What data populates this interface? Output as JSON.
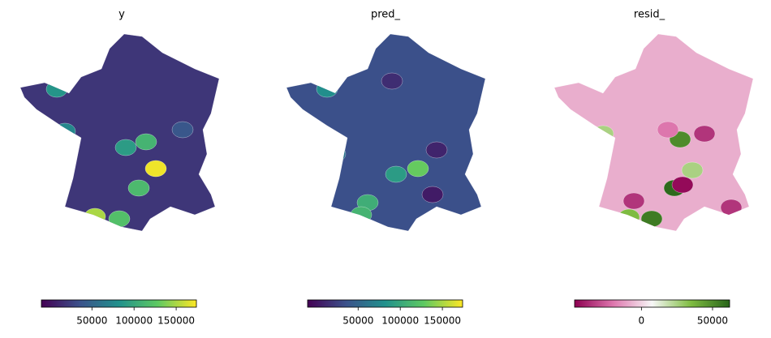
{
  "chart_data": [
    {
      "type": "choropleth",
      "title": "y",
      "colormap": "viridis",
      "clim": [
        -10000,
        174000
      ],
      "cticks": [
        50000,
        100000,
        150000
      ],
      "values": [
        20000,
        110000,
        90000,
        170000,
        115000,
        150000,
        120000,
        85000,
        75000,
        40000
      ]
    },
    {
      "type": "choropleth",
      "title": "pred_",
      "colormap": "viridis",
      "clim": [
        -10000,
        174000
      ],
      "cticks": [
        50000,
        100000,
        150000
      ],
      "values": [
        35000,
        130000,
        90000,
        105000,
        110000,
        5000,
        10000,
        80000,
        60000,
        15000
      ]
    },
    {
      "type": "choropleth",
      "title": "resid_",
      "colormap": "PiYG",
      "clim": [
        -47000,
        62000
      ],
      "cticks": [
        0,
        50000
      ],
      "values": [
        -8000,
        50000,
        60000,
        55000,
        35000,
        -35000,
        -45000,
        -35000,
        -35000,
        25000,
        25000,
        -20000
      ]
    }
  ]
}
